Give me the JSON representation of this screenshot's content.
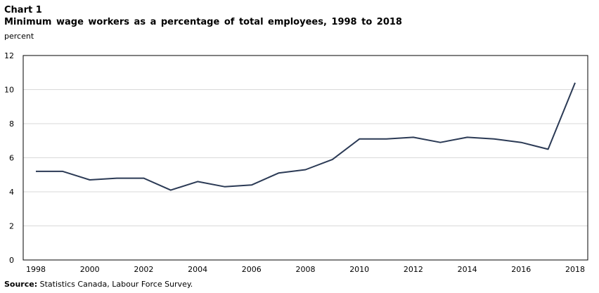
{
  "chart_label": "Chart 1",
  "source_label": "Source:",
  "source_text": " Statistics Canada, Labour Force Survey.",
  "chart_data": {
    "type": "line",
    "title": "Minimum wage workers as a percentage of total employees, 1998 to 2018",
    "ylabel": "percent",
    "xlabel": "",
    "x": [
      1998,
      1999,
      2000,
      2001,
      2002,
      2003,
      2004,
      2005,
      2006,
      2007,
      2008,
      2009,
      2010,
      2011,
      2012,
      2013,
      2014,
      2015,
      2016,
      2017,
      2018
    ],
    "series": [
      {
        "values": [
          5.2,
          5.2,
          4.7,
          4.8,
          4.8,
          4.1,
          4.6,
          4.3,
          4.4,
          5.1,
          5.3,
          5.9,
          7.1,
          7.1,
          7.2,
          6.9,
          7.2,
          7.1,
          6.9,
          6.5,
          10.4
        ]
      }
    ],
    "xticks": [
      "1998",
      "2000",
      "2002",
      "2004",
      "2006",
      "2008",
      "2010",
      "2012",
      "2014",
      "2016",
      "2018"
    ],
    "yticks": [
      "0",
      "2",
      "4",
      "6",
      "8",
      "10",
      "12"
    ],
    "ylim": [
      0,
      12
    ],
    "grid": true,
    "line_color": "#2b3a55"
  }
}
